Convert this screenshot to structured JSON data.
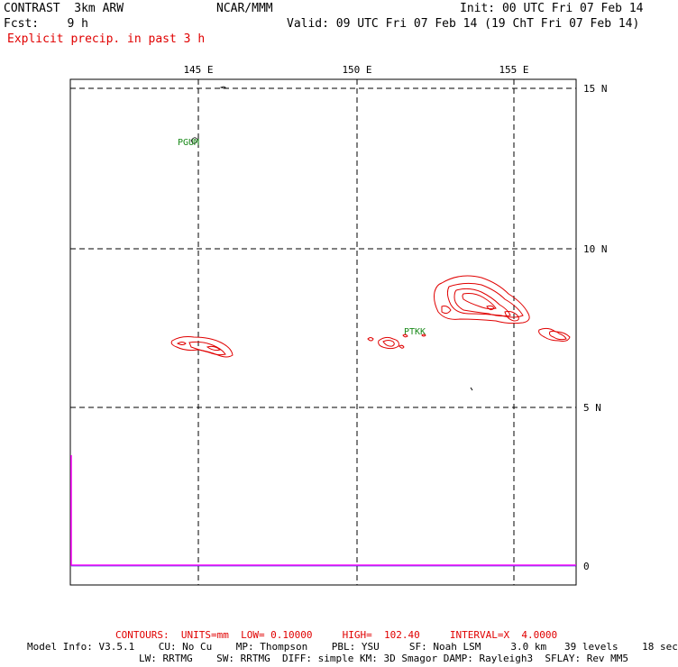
{
  "header": {
    "model": "CONTRAST  3km ARW",
    "org": "NCAR/MMM",
    "init": "Init: 00 UTC Fri 07 Feb 14",
    "fcst": "Fcst:    9 h",
    "valid": "Valid: 09 UTC Fri 07 Feb 14 (19 ChT Fri 07 Feb 14)",
    "field": "Explicit precip. in past 3 h"
  },
  "axes": {
    "lon_labels": [
      "145 E",
      "150 E",
      "155 E"
    ],
    "lat_labels": [
      "15 N",
      "10 N",
      "5 N",
      "0"
    ]
  },
  "stations": [
    "PGUM",
    "PTKK"
  ],
  "footer": {
    "contours": "CONTOURS:  UNITS=mm  LOW= 0.10000     HIGH=  102.40     INTERVAL=X  4.0000",
    "line1": "Model Info: V3.5.1    CU: No Cu    MP: Thompson    PBL: YSU     SF: Noah LSM     3.0 km   39 levels    18 sec",
    "line2": "LW: RRTMG    SW: RRTMG  DIFF: simple KM: 3D Smagor DAMP: Rayleigh3  SFLAY: Rev MM5"
  },
  "colors": {
    "contour": "#e00000",
    "station": "#1a8a1a",
    "boundary": "#ff00ff"
  }
}
